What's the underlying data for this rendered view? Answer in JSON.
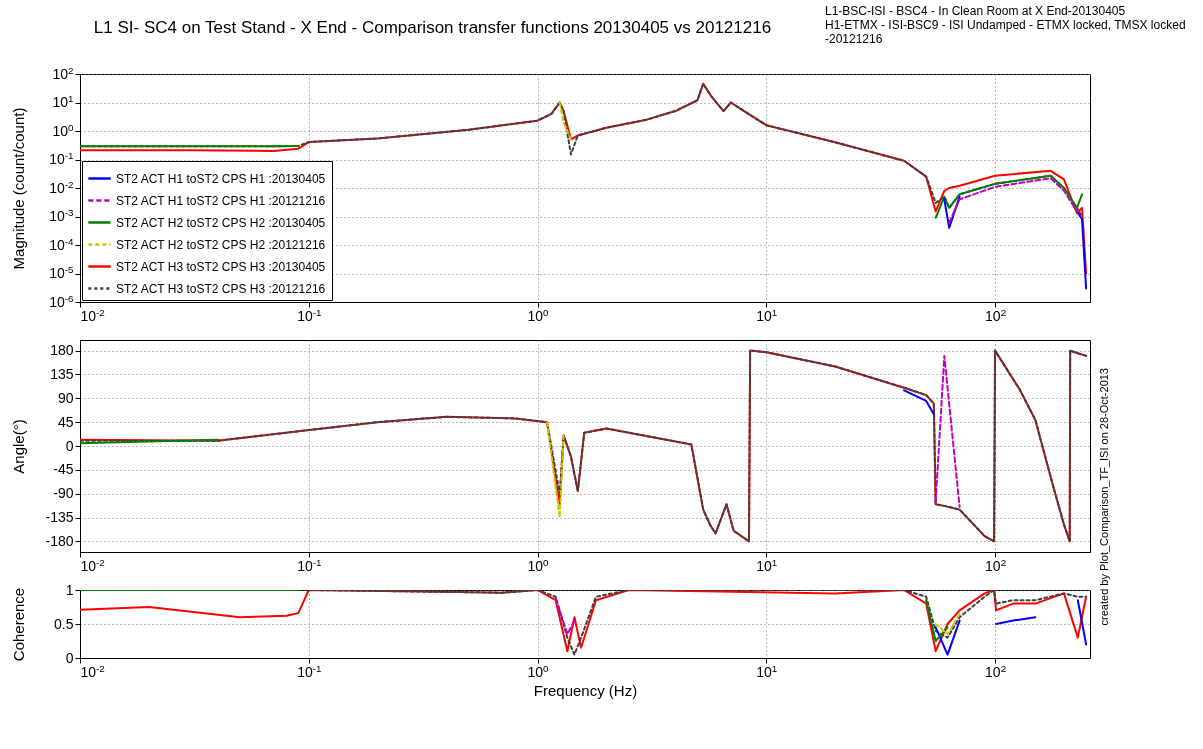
{
  "chart_data": [
    {
      "type": "line",
      "title": "L1 SI- SC4 on Test Stand - X End - Comparison transfer functions 20130405 vs 20121216",
      "ylabel": "Magnitude (count/count)",
      "annotations": [
        "L1-BSC-ISI - BSC4 - In Clean Room at X End-20130405",
        "H1-ETMX - ISI-BSC9 - ISI Undamped - ETMX locked, TMSX locked -20121216"
      ],
      "log": "xy",
      "grid": true,
      "legend": "bottom left",
      "xlim": [
        0.01,
        260
      ],
      "xticks": [
        {
          "value": 0.01,
          "label": "10$^{-2}$"
        },
        {
          "value": 0.1,
          "label": "10$^{-1}$"
        },
        {
          "value": 1,
          "label": "10$^{0}$"
        },
        {
          "value": 10,
          "label": "10$^{1}$"
        },
        {
          "value": 100,
          "label": "10$^{2}$"
        }
      ],
      "ylim": [
        1e-06,
        100
      ],
      "yticks": [
        {
          "value": 1e-06,
          "label": "10$^{-6}$"
        },
        {
          "value": 1e-05,
          "label": "10$^{-5}$"
        },
        {
          "value": 0.0001,
          "label": "10$^{-4}$"
        },
        {
          "value": 0.001,
          "label": "10$^{-3}$"
        },
        {
          "value": 0.01,
          "label": "10$^{-2}$"
        },
        {
          "value": 0.1,
          "label": "10$^{-1}$"
        },
        {
          "value": 1,
          "label": "10$^{0}$"
        },
        {
          "value": 10,
          "label": "10$^{1}$"
        },
        {
          "value": 100,
          "label": "10$^{2}$"
        }
      ],
      "x": [
        0.01,
        0.03,
        0.07,
        0.09,
        0.1,
        0.2,
        0.5,
        1,
        1.15,
        1.25,
        1.3,
        1.4,
        1.5,
        2,
        3,
        4,
        5,
        5.3,
        5.8,
        6.5,
        7,
        8,
        10,
        20,
        40,
        50,
        55,
        60,
        63,
        70,
        100,
        175,
        200,
        228,
        240,
        250
      ],
      "series": [
        {
          "name": "ST2 ACT H1 toST2 CPS H1 :20130405",
          "color": "#0000ff",
          "line_style": "solid",
          "values": [
            null,
            null,
            null,
            null,
            null,
            null,
            null,
            null,
            null,
            null,
            null,
            null,
            null,
            null,
            null,
            null,
            null,
            null,
            null,
            null,
            null,
            null,
            null,
            null,
            null,
            null,
            null,
            0.004,
            0.0004,
            0.005,
            null,
            null,
            null,
            0.0015,
            0.0008,
            3e-06
          ]
        },
        {
          "name": "ST2 ACT H1 toST2 CPS H1 :20121216",
          "color": "#bf00bf",
          "line_style": "dashed",
          "values": [
            null,
            null,
            null,
            null,
            null,
            null,
            null,
            null,
            null,
            null,
            null,
            null,
            null,
            null,
            null,
            null,
            null,
            null,
            null,
            null,
            null,
            null,
            null,
            null,
            null,
            null,
            null,
            null,
            0.0006,
            0.004,
            0.011,
            0.022,
            0.008,
            0.0015,
            null,
            null
          ]
        },
        {
          "name": "ST2 ACT H2 toST2 CPS H2 :20130405",
          "color": "#008000",
          "line_style": "solid",
          "values": [
            0.29,
            0.29,
            0.29,
            0.3,
            null,
            null,
            null,
            null,
            null,
            null,
            null,
            null,
            null,
            null,
            null,
            null,
            null,
            null,
            null,
            null,
            null,
            null,
            null,
            null,
            null,
            null,
            0.0009,
            0.005,
            0.002,
            0.006,
            0.014,
            0.027,
            0.01,
            0.002,
            0.006,
            null
          ]
        },
        {
          "name": "ST2 ACT H2 toST2 CPS H2 :20121216",
          "color": "#c8c800",
          "line_style": "dashed",
          "values": [
            null,
            null,
            null,
            null,
            null,
            null,
            null,
            null,
            null,
            10,
            2,
            0.5,
            null,
            null,
            null,
            null,
            null,
            null,
            null,
            null,
            null,
            null,
            null,
            null,
            null,
            null,
            null,
            null,
            null,
            null,
            null,
            null,
            null,
            null,
            null,
            null
          ]
        },
        {
          "name": "ST2 ACT H3 toST2 CPS H3 :20130405",
          "color": "#ff0000",
          "line_style": "solid",
          "values": [
            0.21,
            0.21,
            0.2,
            0.24,
            0.41,
            0.55,
            1.1,
            2.3,
            4,
            10,
            5,
            0.5,
            0.7,
            1.3,
            2.5,
            5,
            12,
            45,
            15,
            5,
            10,
            5,
            1.6,
            0.4,
            0.09,
            0.025,
            0.0015,
            0.008,
            0.01,
            0.012,
            0.027,
            0.04,
            0.02,
            0.0013,
            0.002,
            1e-05
          ]
        },
        {
          "name": "ST2 ACT H3 toST2 CPS H3 :20121216",
          "color": "#404040",
          "line_style": "dashed",
          "values": [
            0.29,
            0.29,
            0.29,
            0.3,
            0.41,
            0.55,
            1.1,
            2.3,
            4,
            10,
            5,
            0.15,
            0.7,
            1.3,
            2.5,
            5,
            12,
            45,
            15,
            5,
            10,
            5,
            1.6,
            0.4,
            0.09,
            0.025,
            0.003,
            0.005,
            0.002,
            0.006,
            0.014,
            0.027,
            0.01,
            0.002,
            0.001,
            null
          ]
        }
      ]
    },
    {
      "type": "line",
      "ylabel": "Angle(°)",
      "annotations": [
        "created by Plot_Comparison_TF_ISI on 28-Oct-2013"
      ],
      "log": "x",
      "grid": true,
      "xlim": [
        0.01,
        260
      ],
      "xticks": [
        {
          "value": 0.01,
          "label": "10$^{-2}$"
        },
        {
          "value": 0.1,
          "label": "10$^{-1}$"
        },
        {
          "value": 1,
          "label": "10$^{0}$"
        },
        {
          "value": 10,
          "label": "10$^{1}$"
        },
        {
          "value": 100,
          "label": "10$^{2}$"
        }
      ],
      "ylim": [
        -200,
        200
      ],
      "yticks": [
        -180,
        -135,
        -90,
        -45,
        0,
        45,
        90,
        135,
        180
      ],
      "x": [
        0.01,
        0.04,
        0.1,
        0.2,
        0.4,
        0.8,
        1.1,
        1.25,
        1.3,
        1.4,
        1.5,
        1.6,
        2,
        4.7,
        5.3,
        5.7,
        6,
        6.7,
        7.2,
        8.4,
        8.5,
        10,
        20,
        40,
        50,
        54,
        55,
        60,
        70,
        90,
        99,
        100,
        128,
        150,
        180,
        200,
        212,
        213,
        230,
        250
      ],
      "series": [
        {
          "color": "#0000ff",
          "line_style": "solid",
          "values": [
            null,
            null,
            null,
            null,
            null,
            null,
            null,
            null,
            null,
            null,
            null,
            null,
            null,
            null,
            null,
            null,
            null,
            null,
            null,
            null,
            null,
            null,
            null,
            105,
            85,
            60,
            null,
            null,
            null,
            null,
            null,
            null,
            null,
            null,
            null,
            null,
            null,
            null,
            null,
            null
          ]
        },
        {
          "color": "#bf00bf",
          "line_style": "dashed",
          "values": [
            null,
            null,
            null,
            null,
            null,
            null,
            null,
            null,
            null,
            null,
            null,
            null,
            null,
            null,
            null,
            null,
            null,
            null,
            null,
            null,
            null,
            null,
            null,
            null,
            null,
            null,
            -105,
            170,
            -115,
            null,
            null,
            null,
            null,
            null,
            null,
            null,
            null,
            null,
            null,
            null
          ]
        },
        {
          "color": "#008000",
          "line_style": "solid",
          "values": [
            5,
            12,
            null,
            null,
            null,
            null,
            null,
            null,
            null,
            null,
            null,
            null,
            null,
            null,
            null,
            null,
            null,
            null,
            null,
            null,
            null,
            null,
            null,
            null,
            null,
            null,
            null,
            null,
            null,
            null,
            null,
            null,
            null,
            null,
            null,
            null,
            null,
            null,
            null,
            null
          ]
        },
        {
          "color": "#c8c800",
          "line_style": "dashed",
          "values": [
            null,
            null,
            null,
            null,
            null,
            null,
            45,
            -135,
            20,
            null,
            null,
            null,
            null,
            null,
            null,
            null,
            null,
            null,
            null,
            null,
            null,
            null,
            null,
            null,
            null,
            null,
            null,
            null,
            null,
            null,
            null,
            null,
            null,
            null,
            null,
            null,
            null,
            null,
            null,
            null
          ]
        },
        {
          "color": "#ff0000",
          "line_style": "solid",
          "values": [
            12,
            10,
            30,
            45,
            55,
            52,
            45,
            -110,
            20,
            -20,
            -85,
            25,
            33,
            3,
            -120,
            -150,
            -165,
            -110,
            -160,
            -180,
            180,
            177,
            150,
            110,
            96,
            80,
            -110,
            -113,
            -120,
            -170,
            -180,
            180,
            107,
            49,
            -78,
            -148,
            -180,
            180,
            175,
            170
          ]
        },
        {
          "color": "#404040",
          "line_style": "dashed",
          "values": [
            10,
            10,
            30,
            45,
            55,
            52,
            45,
            -90,
            20,
            -20,
            -85,
            25,
            33,
            3,
            -120,
            -150,
            -165,
            -110,
            -160,
            -180,
            180,
            177,
            150,
            110,
            96,
            80,
            -110,
            -113,
            -120,
            -170,
            -180,
            180,
            107,
            49,
            -78,
            -148,
            -180,
            180,
            175,
            170
          ]
        }
      ]
    },
    {
      "type": "line",
      "ylabel": "Coherence",
      "xlabel": "Frequency (Hz)",
      "log": "x",
      "grid": true,
      "xlim": [
        0.01,
        260
      ],
      "xticks": [
        {
          "value": 0.01,
          "label": "10$^{-2}$"
        },
        {
          "value": 0.1,
          "label": "10$^{-1}$"
        },
        {
          "value": 1,
          "label": "10$^{0}$"
        },
        {
          "value": 10,
          "label": "10$^{1}$"
        },
        {
          "value": 100,
          "label": "10$^{2}$"
        }
      ],
      "ylim": [
        0,
        1
      ],
      "yticks": [
        0,
        0.5,
        1
      ],
      "x": [
        0.01,
        0.02,
        0.05,
        0.08,
        0.09,
        0.1,
        0.45,
        0.7,
        1,
        1.2,
        1.35,
        1.45,
        1.55,
        1.8,
        2.5,
        20,
        40,
        50,
        55,
        62,
        70,
        90,
        99,
        101,
        120,
        150,
        200,
        230,
        250
      ],
      "series": [
        {
          "color": "#0000ff",
          "line_style": "solid",
          "values": [
            null,
            null,
            null,
            null,
            null,
            null,
            null,
            null,
            null,
            null,
            null,
            null,
            null,
            null,
            null,
            null,
            null,
            null,
            0.45,
            0.05,
            0.55,
            null,
            null,
            0.5,
            0.55,
            0.6,
            null,
            0.85,
            0.2
          ]
        },
        {
          "color": "#bf00bf",
          "line_style": "dashed",
          "values": [
            null,
            null,
            null,
            null,
            null,
            null,
            null,
            null,
            null,
            0.88,
            0.35,
            0.55,
            null,
            null,
            null,
            null,
            null,
            null,
            null,
            null,
            null,
            null,
            null,
            null,
            null,
            null,
            null,
            null,
            null
          ]
        },
        {
          "color": "#008000",
          "line_style": "solid",
          "values": [
            1,
            1,
            1,
            1,
            1,
            null,
            null,
            null,
            null,
            null,
            null,
            null,
            null,
            null,
            null,
            null,
            null,
            0.85,
            0.25,
            0.45,
            null,
            null,
            null,
            null,
            null,
            null,
            null,
            null,
            null
          ]
        },
        {
          "color": "#c8c800",
          "line_style": "dashed",
          "values": [
            null,
            null,
            null,
            null,
            null,
            null,
            null,
            null,
            null,
            null,
            null,
            null,
            null,
            null,
            null,
            null,
            null,
            null,
            0.5,
            0.35,
            0.65,
            null,
            null,
            null,
            null,
            null,
            null,
            null,
            null
          ]
        },
        {
          "color": "#ff0000",
          "line_style": "solid",
          "values": [
            0.71,
            0.75,
            0.6,
            0.62,
            0.66,
            1,
            0.97,
            0.96,
            1,
            0.85,
            0.1,
            0.6,
            0.15,
            0.85,
            1,
            0.95,
            1,
            0.8,
            0.1,
            0.5,
            0.7,
            0.95,
            1,
            0.7,
            0.8,
            0.8,
            0.95,
            0.3,
            0.9
          ]
        },
        {
          "color": "#404040",
          "line_style": "dashed",
          "values": [
            null,
            null,
            null,
            null,
            null,
            1,
            0.97,
            0.96,
            1,
            0.9,
            0.3,
            0.05,
            0.3,
            0.9,
            1,
            1,
            1,
            0.9,
            0.4,
            0.3,
            0.6,
            0.9,
            1,
            0.8,
            0.85,
            0.85,
            0.95,
            0.9,
            0.9
          ]
        }
      ]
    }
  ]
}
